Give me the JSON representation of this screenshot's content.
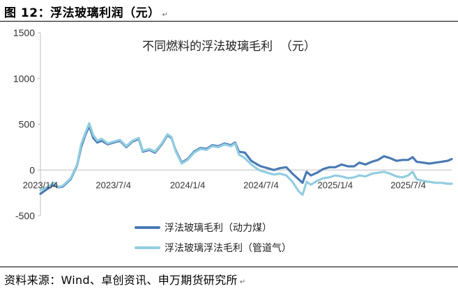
{
  "figure_title": "图 12：浮法玻璃利润（元）",
  "paragraph_mark": "↵",
  "source": "资料来源：Wind、卓创资讯、申万期货研究所",
  "chart_data": {
    "type": "line",
    "title": "不同燃料的浮法玻璃毛利  （元）",
    "xlabel": "",
    "ylabel": "",
    "ylim": [
      -500,
      1500
    ],
    "y_ticks": [
      1500,
      1000,
      500,
      0,
      -500
    ],
    "x_ticks": [
      "2023/1/4",
      "2023/7/4",
      "2024/1/4",
      "2024/7/4",
      "2025/1/4",
      "2025/7/4"
    ],
    "x_range": [
      "2023-01-04",
      "2025-10-20"
    ],
    "grid": false,
    "legend_position": "bottom",
    "series": [
      {
        "name": "浮法玻璃毛利（动力煤）",
        "color": "#4a7ab4",
        "points": [
          [
            "2023-01-04",
            -260
          ],
          [
            "2023-01-20",
            -210
          ],
          [
            "2023-02-06",
            -160
          ],
          [
            "2023-02-18",
            -190
          ],
          [
            "2023-03-01",
            -180
          ],
          [
            "2023-03-20",
            -100
          ],
          [
            "2023-04-05",
            50
          ],
          [
            "2023-04-15",
            250
          ],
          [
            "2023-04-25",
            380
          ],
          [
            "2023-05-05",
            480
          ],
          [
            "2023-05-15",
            350
          ],
          [
            "2023-05-25",
            300
          ],
          [
            "2023-06-05",
            320
          ],
          [
            "2023-06-20",
            280
          ],
          [
            "2023-07-04",
            300
          ],
          [
            "2023-07-20",
            320
          ],
          [
            "2023-08-05",
            250
          ],
          [
            "2023-08-20",
            310
          ],
          [
            "2023-09-05",
            340
          ],
          [
            "2023-09-15",
            200
          ],
          [
            "2023-10-01",
            220
          ],
          [
            "2023-10-15",
            190
          ],
          [
            "2023-11-01",
            280
          ],
          [
            "2023-11-15",
            380
          ],
          [
            "2023-11-25",
            350
          ],
          [
            "2023-12-05",
            220
          ],
          [
            "2023-12-20",
            80
          ],
          [
            "2024-01-04",
            120
          ],
          [
            "2024-01-20",
            200
          ],
          [
            "2024-02-05",
            240
          ],
          [
            "2024-02-20",
            230
          ],
          [
            "2024-03-05",
            270
          ],
          [
            "2024-03-20",
            260
          ],
          [
            "2024-04-05",
            290
          ],
          [
            "2024-04-20",
            270
          ],
          [
            "2024-05-01",
            300
          ],
          [
            "2024-05-10",
            200
          ],
          [
            "2024-05-25",
            190
          ],
          [
            "2024-06-10",
            100
          ],
          [
            "2024-06-25",
            60
          ],
          [
            "2024-07-04",
            40
          ],
          [
            "2024-07-20",
            20
          ],
          [
            "2024-08-05",
            0
          ],
          [
            "2024-08-20",
            20
          ],
          [
            "2024-09-05",
            30
          ],
          [
            "2024-09-20",
            -40
          ],
          [
            "2024-10-05",
            -100
          ],
          [
            "2024-10-15",
            -140
          ],
          [
            "2024-10-25",
            -20
          ],
          [
            "2024-11-05",
            -60
          ],
          [
            "2024-11-20",
            -30
          ],
          [
            "2024-12-05",
            10
          ],
          [
            "2024-12-20",
            30
          ],
          [
            "2025-01-04",
            30
          ],
          [
            "2025-01-20",
            60
          ],
          [
            "2025-02-05",
            40
          ],
          [
            "2025-02-20",
            40
          ],
          [
            "2025-03-05",
            80
          ],
          [
            "2025-03-20",
            60
          ],
          [
            "2025-04-05",
            90
          ],
          [
            "2025-04-20",
            110
          ],
          [
            "2025-05-05",
            150
          ],
          [
            "2025-05-20",
            130
          ],
          [
            "2025-06-05",
            100
          ],
          [
            "2025-06-20",
            110
          ],
          [
            "2025-07-04",
            110
          ],
          [
            "2025-07-15",
            140
          ],
          [
            "2025-07-25",
            90
          ],
          [
            "2025-08-10",
            80
          ],
          [
            "2025-08-25",
            70
          ],
          [
            "2025-09-10",
            80
          ],
          [
            "2025-09-25",
            90
          ],
          [
            "2025-10-10",
            100
          ],
          [
            "2025-10-20",
            120
          ]
        ]
      },
      {
        "name": "浮法玻璃浮法毛利（管道气）",
        "color": "#92cde0",
        "points": [
          [
            "2023-01-04",
            -220
          ],
          [
            "2023-01-20",
            -190
          ],
          [
            "2023-02-06",
            -140
          ],
          [
            "2023-02-18",
            -185
          ],
          [
            "2023-03-01",
            -170
          ],
          [
            "2023-03-20",
            -90
          ],
          [
            "2023-04-05",
            60
          ],
          [
            "2023-04-15",
            280
          ],
          [
            "2023-04-25",
            400
          ],
          [
            "2023-05-05",
            510
          ],
          [
            "2023-05-15",
            380
          ],
          [
            "2023-05-25",
            320
          ],
          [
            "2023-06-05",
            340
          ],
          [
            "2023-06-20",
            290
          ],
          [
            "2023-07-04",
            310
          ],
          [
            "2023-07-20",
            330
          ],
          [
            "2023-08-05",
            260
          ],
          [
            "2023-08-20",
            320
          ],
          [
            "2023-09-05",
            350
          ],
          [
            "2023-09-15",
            210
          ],
          [
            "2023-10-01",
            230
          ],
          [
            "2023-10-15",
            200
          ],
          [
            "2023-11-01",
            290
          ],
          [
            "2023-11-15",
            390
          ],
          [
            "2023-11-25",
            360
          ],
          [
            "2023-12-05",
            210
          ],
          [
            "2023-12-20",
            70
          ],
          [
            "2024-01-04",
            110
          ],
          [
            "2024-01-20",
            190
          ],
          [
            "2024-02-05",
            230
          ],
          [
            "2024-02-20",
            220
          ],
          [
            "2024-03-05",
            260
          ],
          [
            "2024-03-20",
            250
          ],
          [
            "2024-04-05",
            280
          ],
          [
            "2024-04-20",
            260
          ],
          [
            "2024-05-01",
            290
          ],
          [
            "2024-05-10",
            170
          ],
          [
            "2024-05-25",
            130
          ],
          [
            "2024-06-10",
            60
          ],
          [
            "2024-06-25",
            10
          ],
          [
            "2024-07-04",
            -10
          ],
          [
            "2024-07-20",
            -30
          ],
          [
            "2024-08-05",
            -50
          ],
          [
            "2024-08-20",
            -40
          ],
          [
            "2024-09-05",
            -60
          ],
          [
            "2024-09-20",
            -130
          ],
          [
            "2024-10-05",
            -230
          ],
          [
            "2024-10-15",
            -270
          ],
          [
            "2024-10-25",
            -130
          ],
          [
            "2024-11-05",
            -160
          ],
          [
            "2024-11-20",
            -120
          ],
          [
            "2024-12-05",
            -90
          ],
          [
            "2024-12-20",
            -80
          ],
          [
            "2025-01-04",
            -60
          ],
          [
            "2025-01-20",
            -70
          ],
          [
            "2025-02-05",
            -90
          ],
          [
            "2025-02-20",
            -80
          ],
          [
            "2025-03-05",
            -60
          ],
          [
            "2025-03-20",
            -70
          ],
          [
            "2025-04-05",
            -40
          ],
          [
            "2025-04-20",
            -30
          ],
          [
            "2025-05-05",
            -20
          ],
          [
            "2025-05-20",
            -40
          ],
          [
            "2025-06-05",
            -70
          ],
          [
            "2025-06-20",
            -80
          ],
          [
            "2025-07-04",
            -60
          ],
          [
            "2025-07-15",
            -20
          ],
          [
            "2025-07-25",
            -100
          ],
          [
            "2025-08-10",
            -120
          ],
          [
            "2025-08-25",
            -130
          ],
          [
            "2025-09-10",
            -140
          ],
          [
            "2025-09-25",
            -140
          ],
          [
            "2025-10-10",
            -150
          ],
          [
            "2025-10-20",
            -150
          ]
        ]
      }
    ]
  }
}
